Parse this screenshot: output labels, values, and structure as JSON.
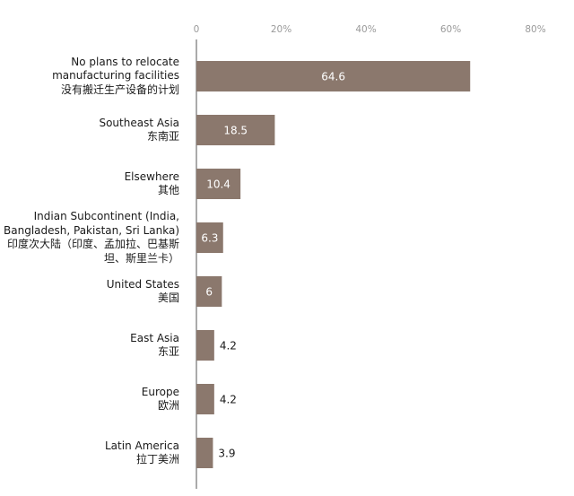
{
  "chart_data": {
    "type": "bar",
    "orientation": "horizontal",
    "categories": [
      {
        "en": "No plans to relocate manufacturing facilities",
        "zh": "没有搬迁生产设备的计划"
      },
      {
        "en": "Southeast Asia",
        "zh": "东南亚"
      },
      {
        "en": "Elsewhere",
        "zh": "其他"
      },
      {
        "en": "Indian Subcontinent (India, Bangladesh, Pakistan, Sri Lanka)",
        "zh": "印度次大陆（印度、孟加拉、巴基斯坦、斯里兰卡）"
      },
      {
        "en": "United States",
        "zh": "美国"
      },
      {
        "en": "East Asia",
        "zh": "东亚"
      },
      {
        "en": "Europe",
        "zh": "欧洲"
      },
      {
        "en": "Latin America",
        "zh": "拉丁美洲"
      }
    ],
    "values": [
      64.6,
      18.5,
      10.4,
      6.3,
      6,
      4.2,
      4.2,
      3.9
    ],
    "value_labels": [
      "64.6",
      "18.5",
      "10.4",
      "6.3",
      "6",
      "4.2",
      "4.2",
      "3.9"
    ],
    "xlim": [
      0,
      80
    ],
    "xticks": [
      0,
      20,
      40,
      60,
      80
    ],
    "xtick_labels": [
      "0",
      "20%",
      "40%",
      "60%",
      "80%"
    ],
    "grid": false,
    "legend": "none",
    "colors": {
      "bar": "#8b786d",
      "inside_label": "#ffffff",
      "outside_label": "#1a1a1a",
      "axis": "#555555",
      "tick_label": "#9a9a9a"
    }
  }
}
